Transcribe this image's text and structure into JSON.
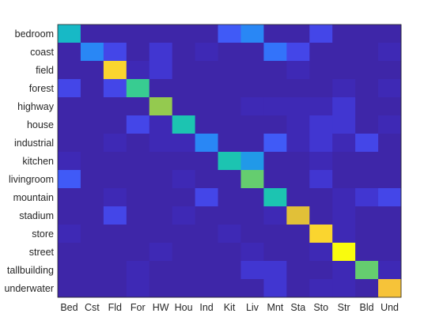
{
  "chart_data": {
    "type": "heatmap",
    "title": "",
    "xlabel": "",
    "ylabel": "",
    "y_categories": [
      "bedroom",
      "coast",
      "field",
      "forest",
      "highway",
      "house",
      "industrial",
      "kitchen",
      "livingroom",
      "mountain",
      "stadium",
      "store",
      "street",
      "tallbuilding",
      "underwater"
    ],
    "x_categories": [
      "Bed",
      "Cst",
      "Fld",
      "For",
      "HW",
      "Hou",
      "Ind",
      "Kit",
      "Liv",
      "Mnt",
      "Sta",
      "Sto",
      "Str",
      "Bld",
      "Und"
    ],
    "colormap": "parula",
    "value_range": [
      0,
      0.9
    ],
    "values": [
      [
        0.45,
        0.0,
        0.0,
        0.0,
        0.0,
        0.0,
        0.0,
        0.2,
        0.3,
        0.0,
        0.0,
        0.15,
        0.0,
        0.0,
        0.0
      ],
      [
        0.0,
        0.3,
        0.15,
        0.0,
        0.1,
        0.0,
        0.05,
        0.0,
        0.0,
        0.25,
        0.15,
        0.0,
        0.0,
        0.0,
        0.05
      ],
      [
        0.0,
        0.0,
        0.85,
        0.05,
        0.1,
        0.0,
        0.0,
        0.0,
        0.0,
        0.0,
        0.05,
        0.0,
        0.0,
        0.0,
        0.0
      ],
      [
        0.15,
        0.0,
        0.15,
        0.55,
        0.0,
        0.0,
        0.0,
        0.0,
        0.0,
        0.0,
        0.0,
        0.0,
        0.05,
        0.0,
        0.05
      ],
      [
        0.0,
        0.0,
        0.0,
        0.0,
        0.65,
        0.0,
        0.0,
        0.0,
        0.05,
        0.05,
        0.05,
        0.05,
        0.1,
        0.0,
        0.0
      ],
      [
        0.0,
        0.0,
        0.0,
        0.15,
        0.05,
        0.5,
        0.0,
        0.0,
        0.0,
        0.0,
        0.05,
        0.1,
        0.1,
        0.0,
        0.05
      ],
      [
        0.0,
        0.0,
        0.05,
        0.0,
        0.05,
        0.05,
        0.3,
        0.0,
        0.0,
        0.2,
        0.05,
        0.1,
        0.05,
        0.15,
        0.0
      ],
      [
        0.05,
        0.0,
        0.0,
        0.0,
        0.0,
        0.0,
        0.0,
        0.5,
        0.35,
        0.0,
        0.0,
        0.05,
        0.0,
        0.0,
        0.0
      ],
      [
        0.2,
        0.0,
        0.0,
        0.0,
        0.0,
        0.05,
        0.0,
        0.0,
        0.6,
        0.0,
        0.0,
        0.1,
        0.0,
        0.0,
        0.0
      ],
      [
        0.0,
        0.0,
        0.05,
        0.0,
        0.0,
        0.0,
        0.15,
        0.0,
        0.0,
        0.5,
        0.0,
        0.0,
        0.05,
        0.1,
        0.15
      ],
      [
        0.0,
        0.0,
        0.15,
        0.0,
        0.0,
        0.05,
        0.0,
        0.0,
        0.0,
        0.05,
        0.75,
        0.0,
        0.05,
        0.0,
        0.0
      ],
      [
        0.05,
        0.0,
        0.0,
        0.0,
        0.0,
        0.0,
        0.0,
        0.05,
        0.0,
        0.0,
        0.0,
        0.85,
        0.05,
        0.0,
        0.0
      ],
      [
        0.0,
        0.0,
        0.0,
        0.0,
        0.05,
        0.0,
        0.0,
        0.0,
        0.05,
        0.0,
        0.0,
        0.05,
        0.9,
        0.0,
        0.0
      ],
      [
        0.0,
        0.0,
        0.0,
        0.05,
        0.0,
        0.0,
        0.0,
        0.0,
        0.1,
        0.1,
        0.0,
        0.0,
        0.05,
        0.6,
        0.05
      ],
      [
        0.0,
        0.0,
        0.0,
        0.05,
        0.0,
        0.0,
        0.0,
        0.0,
        0.0,
        0.1,
        0.0,
        0.05,
        0.05,
        0.0,
        0.8
      ]
    ]
  }
}
